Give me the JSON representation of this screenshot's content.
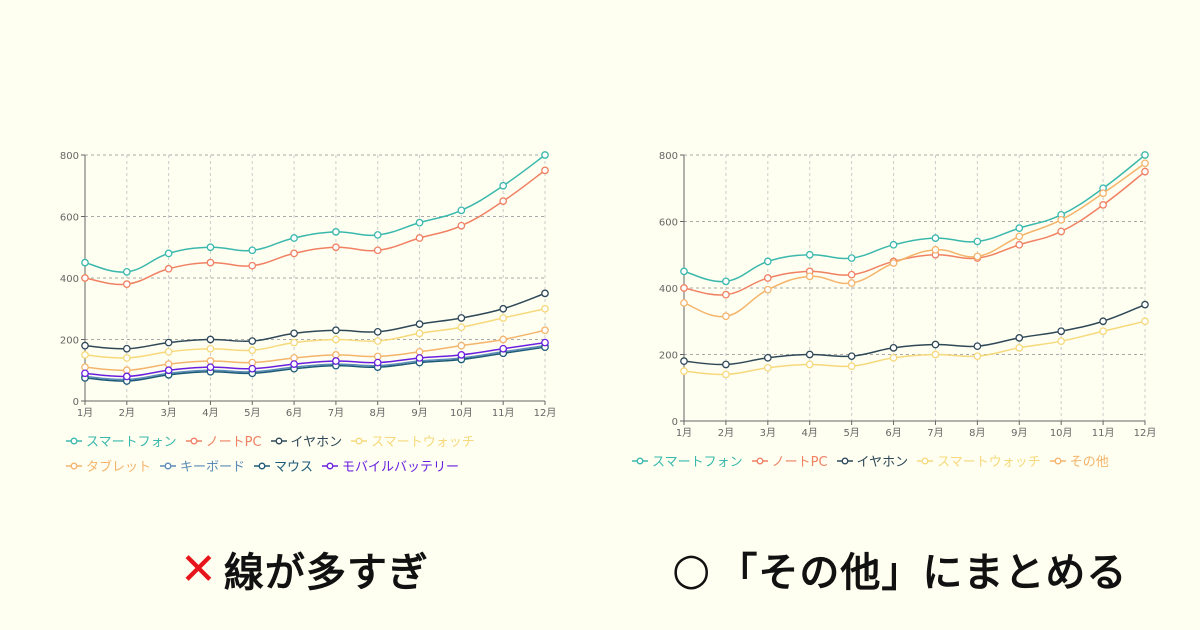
{
  "background": "#fefff0",
  "chart_data": [
    {
      "type": "line",
      "categories": [
        "1月",
        "2月",
        "3月",
        "4月",
        "5月",
        "6月",
        "7月",
        "8月",
        "9月",
        "10月",
        "11月",
        "12月"
      ],
      "ylim": [
        0,
        800
      ],
      "yticks": [
        0,
        200,
        400,
        600,
        800
      ],
      "grid": true,
      "legend_position": "bottom",
      "series": [
        {
          "name": "スマートフォン",
          "color": "#3bb8ad",
          "values": [
            450,
            420,
            480,
            500,
            490,
            530,
            550,
            540,
            580,
            620,
            700,
            800
          ]
        },
        {
          "name": "ノートPC",
          "color": "#f08163",
          "values": [
            400,
            380,
            430,
            450,
            440,
            480,
            500,
            490,
            530,
            570,
            650,
            750
          ]
        },
        {
          "name": "イヤホン",
          "color": "#2f4858",
          "values": [
            180,
            170,
            190,
            200,
            195,
            220,
            230,
            225,
            250,
            270,
            300,
            350
          ]
        },
        {
          "name": "スマートウォッチ",
          "color": "#f6d97c",
          "values": [
            150,
            140,
            160,
            170,
            165,
            190,
            200,
            195,
            220,
            240,
            270,
            300
          ]
        },
        {
          "name": "タブレット",
          "color": "#f4b46c",
          "values": [
            110,
            100,
            120,
            130,
            125,
            140,
            150,
            145,
            160,
            180,
            200,
            230
          ]
        },
        {
          "name": "キーボード",
          "color": "#5b8bb8",
          "values": [
            80,
            70,
            90,
            100,
            95,
            110,
            120,
            115,
            130,
            140,
            160,
            180
          ]
        },
        {
          "name": "マウス",
          "color": "#1d5a78",
          "values": [
            75,
            65,
            85,
            95,
            90,
            105,
            115,
            110,
            125,
            135,
            155,
            175
          ]
        },
        {
          "name": "モバイルバッテリー",
          "color": "#6a1fe0",
          "values": [
            90,
            80,
            100,
            110,
            105,
            120,
            130,
            125,
            140,
            150,
            170,
            190
          ]
        }
      ]
    },
    {
      "type": "line",
      "categories": [
        "1月",
        "2月",
        "3月",
        "4月",
        "5月",
        "6月",
        "7月",
        "8月",
        "9月",
        "10月",
        "11月",
        "12月"
      ],
      "ylim": [
        0,
        800
      ],
      "yticks": [
        0,
        200,
        400,
        600,
        800
      ],
      "grid": true,
      "legend_position": "bottom",
      "series": [
        {
          "name": "スマートフォン",
          "color": "#3bb8ad",
          "values": [
            450,
            420,
            480,
            500,
            490,
            530,
            550,
            540,
            580,
            620,
            700,
            800
          ]
        },
        {
          "name": "ノートPC",
          "color": "#f08163",
          "values": [
            400,
            380,
            430,
            450,
            440,
            480,
            500,
            490,
            530,
            570,
            650,
            750
          ]
        },
        {
          "name": "イヤホン",
          "color": "#2f4858",
          "values": [
            180,
            170,
            190,
            200,
            195,
            220,
            230,
            225,
            250,
            270,
            300,
            350
          ]
        },
        {
          "name": "スマートウォッチ",
          "color": "#f6d97c",
          "values": [
            150,
            140,
            160,
            170,
            165,
            190,
            200,
            195,
            220,
            240,
            270,
            300
          ]
        },
        {
          "name": "その他",
          "color": "#f4b46c",
          "values": [
            355,
            315,
            395,
            435,
            415,
            475,
            515,
            495,
            555,
            605,
            685,
            775
          ]
        }
      ]
    }
  ],
  "captions": {
    "bad": {
      "mark": "✕",
      "mark_color": "#e8141b",
      "text": "線が多すぎ"
    },
    "good": {
      "mark": "○",
      "text": "「その他」にまとめる"
    }
  }
}
